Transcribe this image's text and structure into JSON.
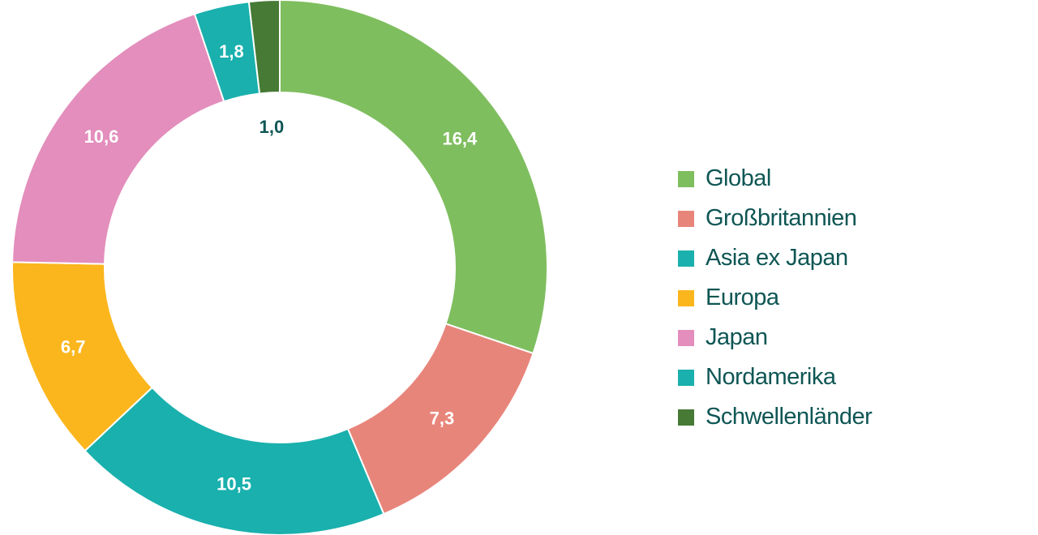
{
  "chart_data": {
    "type": "pie",
    "donut": true,
    "title": "",
    "legend_position": "right",
    "slices": [
      {
        "name": "Global",
        "value": 16.4,
        "label": "16,4",
        "color": "#7fbe5f"
      },
      {
        "name": "Großbritannien",
        "value": 7.3,
        "label": "7,3",
        "color": "#e8857b"
      },
      {
        "name": "Nordamerika",
        "value": 10.5,
        "label": "10,5",
        "color": "#19b0ad"
      },
      {
        "name": "Europa",
        "value": 6.7,
        "label": "6,7",
        "color": "#fbb61d"
      },
      {
        "name": "Japan",
        "value": 10.6,
        "label": "10,6",
        "color": "#e38ebc"
      },
      {
        "name": "Asia ex Japan",
        "value": 1.8,
        "label": "1,8",
        "color": "#19b0ad"
      },
      {
        "name": "Schwellenländer",
        "value": 1.0,
        "label": "1,0",
        "color": "#467a35",
        "label_color": "#0e5654"
      }
    ],
    "legend": [
      {
        "label": "Global",
        "color": "#7fbe5f"
      },
      {
        "label": "Großbritannien",
        "color": "#e8857b"
      },
      {
        "label": "Asia ex Japan",
        "color": "#19b0ad"
      },
      {
        "label": "Europa",
        "color": "#fbb61d"
      },
      {
        "label": "Japan",
        "color": "#e38ebc"
      },
      {
        "label": "Nordamerika",
        "color": "#19b0ad"
      },
      {
        "label": "Schwellenländer",
        "color": "#467a35"
      }
    ]
  }
}
